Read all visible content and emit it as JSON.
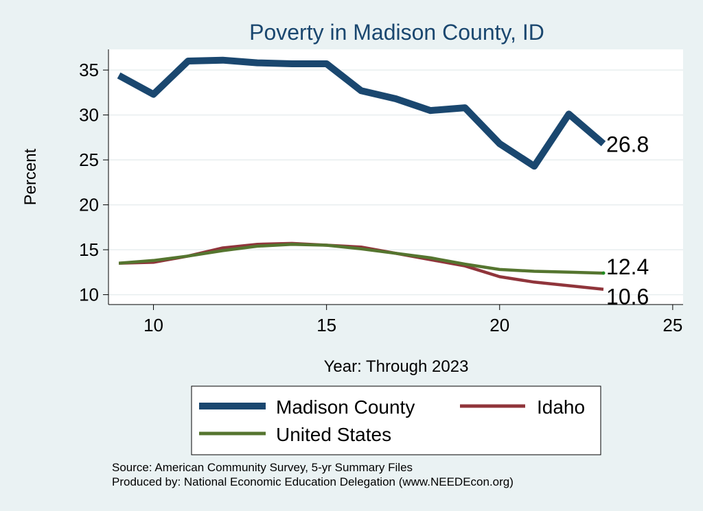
{
  "chart_data": {
    "type": "line",
    "title": "Poverty in Madison County, ID",
    "xlabel": "Year: Through 2023",
    "ylabel": "Percent",
    "xlim": [
      8.7,
      25.3
    ],
    "ylim": [
      8.9,
      37.3
    ],
    "xticks": [
      10,
      15,
      20,
      25
    ],
    "yticks": [
      10,
      15,
      20,
      25,
      30,
      35
    ],
    "grid": true,
    "series": [
      {
        "name": "Madison County",
        "color": "#1a476f",
        "x": [
          9,
          10,
          11,
          12,
          13,
          14,
          15,
          16,
          17,
          18,
          19,
          20,
          21,
          22,
          23
        ],
        "values": [
          34.4,
          32.3,
          36.0,
          36.1,
          35.8,
          35.7,
          35.7,
          32.7,
          31.8,
          30.5,
          30.8,
          26.8,
          24.3,
          30.1,
          26.8
        ],
        "end_label": "26.8"
      },
      {
        "name": "Idaho",
        "color": "#90353b",
        "x": [
          9,
          10,
          11,
          12,
          13,
          14,
          15,
          16,
          17,
          18,
          19,
          20,
          21,
          22,
          23
        ],
        "values": [
          13.5,
          13.6,
          14.3,
          15.2,
          15.6,
          15.7,
          15.5,
          15.3,
          14.6,
          13.9,
          13.2,
          12.0,
          11.4,
          11.0,
          10.6
        ],
        "end_label": "10.6"
      },
      {
        "name": "United States",
        "color": "#55752f",
        "x": [
          9,
          10,
          11,
          12,
          13,
          14,
          15,
          16,
          17,
          18,
          19,
          20,
          21,
          22,
          23
        ],
        "values": [
          13.5,
          13.8,
          14.3,
          14.9,
          15.4,
          15.6,
          15.5,
          15.1,
          14.6,
          14.1,
          13.4,
          12.8,
          12.6,
          12.5,
          12.4
        ],
        "end_label": "12.4"
      }
    ],
    "legend": {
      "position": "bottom",
      "entries": [
        "Madison County",
        "Idaho",
        "United States"
      ]
    },
    "notes": [
      "Source: American Community Survey, 5-yr Summary Files",
      "Produced by: National Economic Education Delegation (www.NEEDEcon.org)"
    ]
  }
}
